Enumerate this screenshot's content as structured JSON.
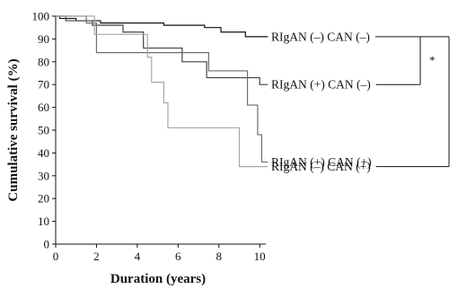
{
  "chart_data": {
    "type": "line",
    "step": true,
    "xlabel": "Duration (years)",
    "ylabel": "Cumulative survival (%)",
    "xlim": [
      0,
      10.3
    ],
    "ylim": [
      0,
      100
    ],
    "xticks": [
      0,
      2,
      4,
      6,
      8,
      10
    ],
    "yticks": [
      0,
      10,
      20,
      30,
      40,
      50,
      60,
      70,
      80,
      90,
      100
    ],
    "grid": false,
    "legend": "inline labels at right ends of curves",
    "significance": "*",
    "series": [
      {
        "name": "RIgAN (–) CAN (–)",
        "color": "#111111",
        "x": [
          0,
          0.2,
          1.0,
          2.2,
          2.8,
          4.5,
          5.3,
          7.3,
          8.1,
          9.3,
          10.4
        ],
        "y": [
          100,
          99,
          98,
          97,
          97,
          97,
          96,
          95,
          93,
          91,
          91
        ]
      },
      {
        "name": "RIgAN (+) CAN (–)",
        "color": "#444444",
        "x": [
          0,
          0.5,
          1.0,
          1.8,
          3.3,
          4.3,
          6.2,
          7.4,
          9.2,
          10.0,
          10.4
        ],
        "y": [
          100,
          98,
          98,
          96,
          93,
          86,
          80,
          73,
          73,
          70,
          70
        ]
      },
      {
        "name": "RIgAN (+) CAN (+)",
        "color": "#6e6e6e",
        "x": [
          0,
          1.5,
          2.0,
          4.3,
          7.5,
          9.4,
          9.9,
          10.1,
          10.4
        ],
        "y": [
          100,
          97,
          84,
          84,
          76,
          61,
          48,
          36,
          36
        ]
      },
      {
        "name": "RIgAN (–) CAN (+)",
        "color": "#a8a8a8",
        "x": [
          0,
          1.9,
          4.5,
          4.7,
          5.3,
          5.5,
          9.0,
          10.4
        ],
        "y": [
          100,
          92,
          82,
          71,
          62,
          51,
          34,
          34
        ]
      }
    ]
  }
}
